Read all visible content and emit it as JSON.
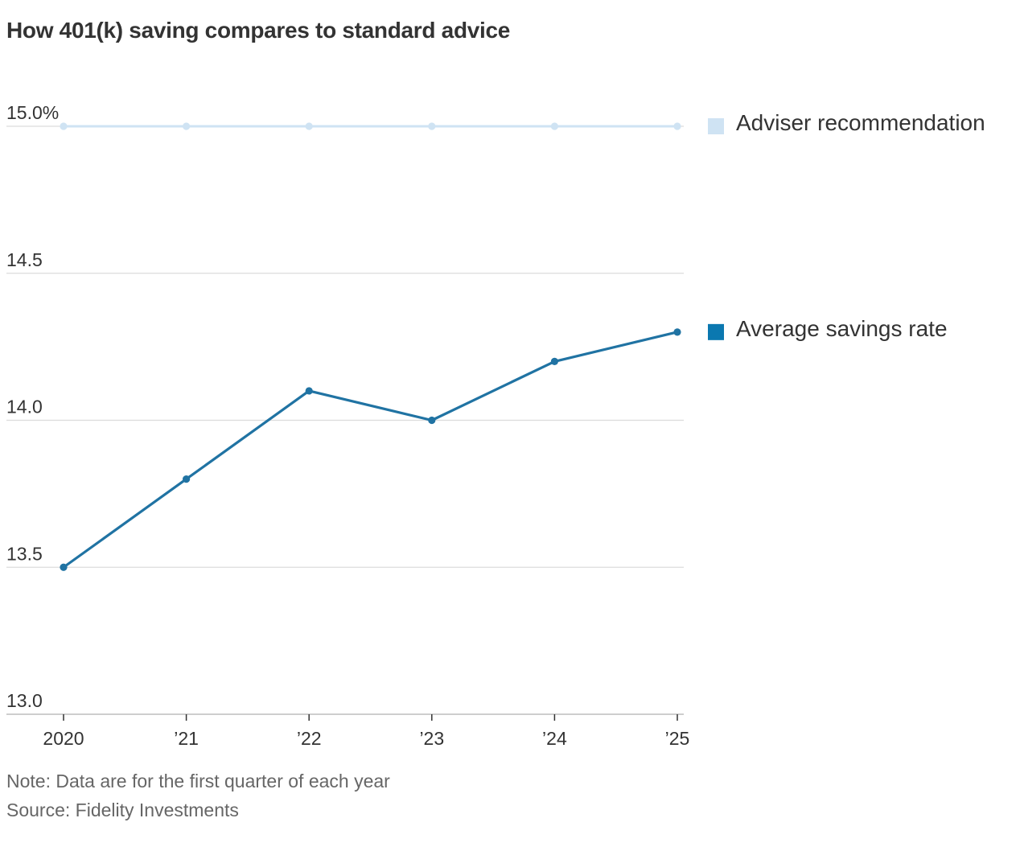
{
  "chart_data": {
    "type": "line",
    "title": "How 401(k) saving compares to standard advice",
    "xlabel": "",
    "ylabel": "",
    "categories": [
      "2020",
      "’21",
      "’22",
      "’23",
      "’24",
      "’25"
    ],
    "ylim": [
      13.0,
      15.0
    ],
    "yticks": [
      13.0,
      13.5,
      14.0,
      14.5,
      15.0
    ],
    "ytick_labels": [
      "13.0",
      "13.5",
      "14.0",
      "14.5",
      "15.0%"
    ],
    "grid": true,
    "legend_position": "right",
    "series": [
      {
        "name": "Adviser recommendation",
        "values": [
          15.0,
          15.0,
          15.0,
          15.0,
          15.0,
          15.0
        ],
        "color": "#cfe3f3",
        "legend_color": "#cfe3f3"
      },
      {
        "name": "Average savings rate",
        "values": [
          13.5,
          13.8,
          14.1,
          14.0,
          14.2,
          14.3
        ],
        "color": "#2073a3",
        "legend_color": "#0b78b0"
      }
    ]
  },
  "footer": {
    "note": "Note: Data are for the first quarter of each year",
    "source": "Source: Fidelity Investments"
  }
}
